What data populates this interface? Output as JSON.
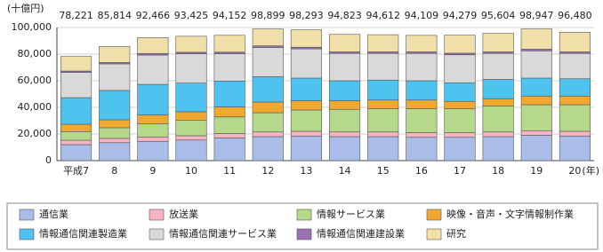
{
  "chart_data": {
    "type": "stacked-bar",
    "y_label": "(十億円)",
    "x_label": "(年)",
    "categories": [
      "平成7",
      "8",
      "9",
      "10",
      "11",
      "12",
      "13",
      "14",
      "15",
      "16",
      "17",
      "18",
      "19",
      "20"
    ],
    "ylim": [
      0,
      100000
    ],
    "yticks": [
      0,
      {
        "value": 20000,
        "label": "20,000"
      },
      {
        "value": 40000,
        "label": "40,000"
      },
      {
        "value": 60000,
        "label": "60,000"
      },
      {
        "value": 80000,
        "label": "80,000"
      },
      {
        "value": 100000,
        "label": "100,000"
      }
    ],
    "grid": true,
    "legend": "bottom",
    "series": [
      {
        "name": "通信業",
        "color": "#aabde8",
        "values": [
          12000,
          13500,
          14500,
          15500,
          17000,
          18000,
          18500,
          18000,
          18000,
          17500,
          17500,
          18000,
          19000,
          18500
        ]
      },
      {
        "name": "放送業",
        "color": "#f5b3c3",
        "values": [
          3300,
          3200,
          3300,
          3200,
          3300,
          3500,
          3500,
          3500,
          3500,
          3500,
          3500,
          3500,
          3500,
          3500
        ]
      },
      {
        "name": "情報サービス業",
        "color": "#b5d88a",
        "values": [
          6500,
          8000,
          10000,
          11500,
          12500,
          14500,
          16000,
          17000,
          17500,
          18000,
          18000,
          19500,
          19500,
          20000
        ]
      },
      {
        "name": "映像・音声・文字情報制作業",
        "color": "#f0a830",
        "values": [
          5500,
          6000,
          6500,
          6500,
          7500,
          8000,
          7000,
          6500,
          6500,
          6500,
          5500,
          5500,
          6500,
          6500
        ]
      },
      {
        "name": "情報通信関連製造業",
        "color": "#4fc3f0",
        "values": [
          20000,
          22000,
          23000,
          21500,
          19500,
          19000,
          17000,
          15000,
          15000,
          14500,
          14000,
          14500,
          13500,
          13000
        ]
      },
      {
        "name": "情報通信関連サービス業",
        "color": "#d9d9d9",
        "values": [
          19000,
          20000,
          22000,
          22000,
          20500,
          22000,
          22000,
          20500,
          20000,
          20500,
          21000,
          19500,
          20500,
          19000
        ]
      },
      {
        "name": "情報通信関連建設業",
        "color": "#9b6fb6",
        "values": [
          1000,
          1000,
          1200,
          1200,
          1200,
          1200,
          1200,
          1200,
          1200,
          1200,
          1200,
          1200,
          1200,
          1200
        ]
      },
      {
        "name": "研究",
        "color": "#f0dfa8",
        "values": [
          10921,
          12114,
          11966,
          12025,
          12652,
          12699,
          13093,
          13123,
          12912,
          12409,
          13579,
          13904,
          15247,
          14780
        ]
      }
    ],
    "totals": {
      "values": [
        78221,
        85814,
        92466,
        93425,
        94152,
        98899,
        98293,
        94823,
        94612,
        94109,
        94279,
        95604,
        98947,
        96480
      ],
      "value_labels": [
        "78,221",
        "85,814",
        "92,466",
        "93,425",
        "94,152",
        "98,899",
        "98,293",
        "94,823",
        "94,612",
        "94,109",
        "94,279",
        "95,604",
        "98,947",
        "96,480"
      ]
    }
  }
}
